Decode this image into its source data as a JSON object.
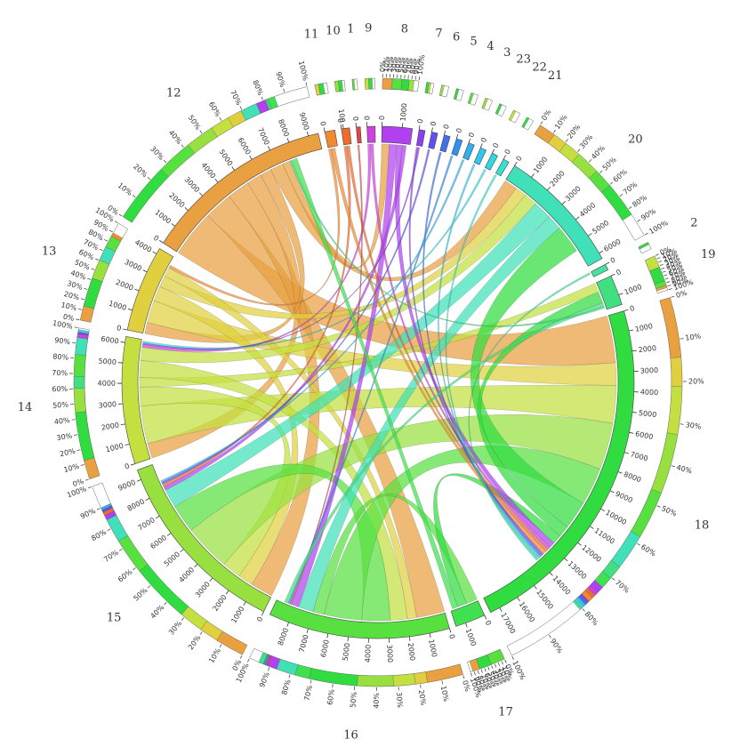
{
  "chart_data": {
    "type": "chord",
    "segments": [
      {
        "name": "11",
        "color": "#f08a30",
        "size": 500,
        "ticks": [
          0
        ]
      },
      {
        "name": "10",
        "color": "#f06a30",
        "size": 400,
        "ticks": [
          0,
          100
        ]
      },
      {
        "name": "1",
        "color": "#e04848",
        "size": 200,
        "ticks": [
          0
        ]
      },
      {
        "name": "9",
        "color": "#d040e0",
        "size": 400,
        "ticks": [
          0
        ]
      },
      {
        "name": "8",
        "color": "#b040f0",
        "size": 1500,
        "ticks": [
          0,
          1000
        ]
      },
      {
        "name": "7",
        "color": "#8a40f0",
        "size": 300,
        "ticks": [
          0
        ]
      },
      {
        "name": "6",
        "color": "#6050f0",
        "size": 300,
        "ticks": [
          0
        ]
      },
      {
        "name": "5",
        "color": "#4070f0",
        "size": 300,
        "ticks": [
          0
        ]
      },
      {
        "name": "4",
        "color": "#3090f0",
        "size": 300,
        "ticks": [
          0
        ]
      },
      {
        "name": "3",
        "color": "#30b0f0",
        "size": 300,
        "ticks": [
          0
        ]
      },
      {
        "name": "23",
        "color": "#30c8f0",
        "size": 300,
        "ticks": [
          0
        ]
      },
      {
        "name": "22",
        "color": "#30d8e0",
        "size": 300,
        "ticks": [
          0
        ]
      },
      {
        "name": "21",
        "color": "#38e0d0",
        "size": 300,
        "ticks": [
          0
        ]
      },
      {
        "name": "20",
        "color": "#40e0b8",
        "size": 6300,
        "ticks": [
          0,
          1000,
          2000,
          3000,
          4000,
          5000,
          6000
        ]
      },
      {
        "name": "2",
        "color": "#48e0a0",
        "size": 300,
        "ticks": [
          0
        ]
      },
      {
        "name": "19",
        "color": "#40e080",
        "size": 1500,
        "ticks": [
          0,
          1000
        ]
      },
      {
        "name": "18",
        "color": "#30dc40",
        "size": 17500,
        "ticks": [
          0,
          1000,
          2000,
          3000,
          4000,
          5000,
          6000,
          7000,
          8000,
          9000,
          10000,
          11000,
          12000,
          13000,
          14000,
          15000,
          16000,
          17000
        ]
      },
      {
        "name": "17",
        "color": "#40e050",
        "size": 1500,
        "ticks": [
          0,
          1000
        ]
      },
      {
        "name": "16",
        "color": "#58e040",
        "size": 9000,
        "ticks": [
          0,
          1000,
          2000,
          3000,
          4000,
          5000,
          6000,
          7000,
          8000
        ]
      },
      {
        "name": "15",
        "color": "#98e040",
        "size": 9500,
        "ticks": [
          0,
          1000,
          2000,
          3000,
          4000,
          5000,
          6000,
          7000,
          8000,
          9000
        ]
      },
      {
        "name": "14",
        "color": "#c4e040",
        "size": 6300,
        "ticks": [
          0,
          1000,
          2000,
          3000,
          4000,
          5000,
          6000
        ]
      },
      {
        "name": "13",
        "color": "#e0d040",
        "size": 4300,
        "ticks": [
          0,
          1000,
          2000,
          3000,
          4000
        ]
      },
      {
        "name": "12",
        "color": "#e8a040",
        "size": 9500,
        "ticks": [
          0,
          1000,
          2000,
          3000,
          4000,
          5000,
          6000,
          7000,
          8000,
          9000
        ]
      }
    ],
    "percent_ticks": [
      {
        "value": 0,
        "label": "0%"
      },
      {
        "value": 10,
        "label": "10%"
      },
      {
        "value": 20,
        "label": "20%"
      },
      {
        "value": 30,
        "label": "30%"
      },
      {
        "value": 40,
        "label": "40%"
      },
      {
        "value": 50,
        "label": "50%"
      },
      {
        "value": 60,
        "label": "60%"
      },
      {
        "value": 70,
        "label": "70%"
      },
      {
        "value": 80,
        "label": "80%"
      },
      {
        "value": 90,
        "label": "90%"
      },
      {
        "value": 100,
        "label": "100%"
      }
    ],
    "links": [
      {
        "source": "12",
        "target": "18",
        "value": 2500
      },
      {
        "source": "12",
        "target": "16",
        "value": 1500
      },
      {
        "source": "12",
        "target": "15",
        "value": 1200
      },
      {
        "source": "12",
        "target": "14",
        "value": 800
      },
      {
        "source": "12",
        "target": "13",
        "value": 600
      },
      {
        "source": "12",
        "target": "20",
        "value": 700
      },
      {
        "source": "12",
        "target": "8",
        "value": 400
      },
      {
        "source": "13",
        "target": "18",
        "value": 1200
      },
      {
        "source": "13",
        "target": "15",
        "value": 800
      },
      {
        "source": "13",
        "target": "20",
        "value": 600
      },
      {
        "source": "13",
        "target": "16",
        "value": 500
      },
      {
        "source": "14",
        "target": "18",
        "value": 2000
      },
      {
        "source": "14",
        "target": "15",
        "value": 1000
      },
      {
        "source": "14",
        "target": "19",
        "value": 500
      },
      {
        "source": "14",
        "target": "16",
        "value": 900
      },
      {
        "source": "14",
        "target": "20",
        "value": 700
      },
      {
        "source": "15",
        "target": "18",
        "value": 2500
      },
      {
        "source": "16",
        "target": "15",
        "value": 1500
      },
      {
        "source": "20",
        "target": "15",
        "value": 1000
      },
      {
        "source": "16",
        "target": "18",
        "value": 2000
      },
      {
        "source": "16",
        "target": "17",
        "value": 600
      },
      {
        "source": "20",
        "target": "16",
        "value": 800
      },
      {
        "source": "18",
        "target": "20",
        "value": 1500
      },
      {
        "source": "18",
        "target": "19",
        "value": 600
      },
      {
        "source": "18",
        "target": "17",
        "value": 500
      },
      {
        "source": "8",
        "target": "16",
        "value": 400
      },
      {
        "source": "8",
        "target": "18",
        "value": 300
      },
      {
        "source": "8",
        "target": "15",
        "value": 200
      },
      {
        "source": "9",
        "target": "14",
        "value": 150
      },
      {
        "source": "9",
        "target": "18",
        "value": 150
      },
      {
        "source": "10",
        "target": "15",
        "value": 150
      },
      {
        "source": "10",
        "target": "18",
        "value": 150
      },
      {
        "source": "11",
        "target": "13",
        "value": 150
      },
      {
        "source": "11",
        "target": "18",
        "value": 200
      },
      {
        "source": "1",
        "target": "16",
        "value": 80
      },
      {
        "source": "7",
        "target": "18",
        "value": 100
      },
      {
        "source": "7",
        "target": "14",
        "value": 80
      },
      {
        "source": "6",
        "target": "15",
        "value": 100
      },
      {
        "source": "5",
        "target": "18",
        "value": 100
      },
      {
        "source": "4",
        "target": "16",
        "value": 100
      },
      {
        "source": "3",
        "target": "15",
        "value": 100
      },
      {
        "source": "23",
        "target": "18",
        "value": 100
      },
      {
        "source": "22",
        "target": "14",
        "value": 100
      },
      {
        "source": "21",
        "target": "18",
        "value": 100
      },
      {
        "source": "2",
        "target": "18",
        "value": 100
      },
      {
        "source": "19",
        "target": "16",
        "value": 200
      },
      {
        "source": "19",
        "target": "12",
        "value": 100
      },
      {
        "source": "17",
        "target": "12",
        "value": 300
      }
    ]
  }
}
